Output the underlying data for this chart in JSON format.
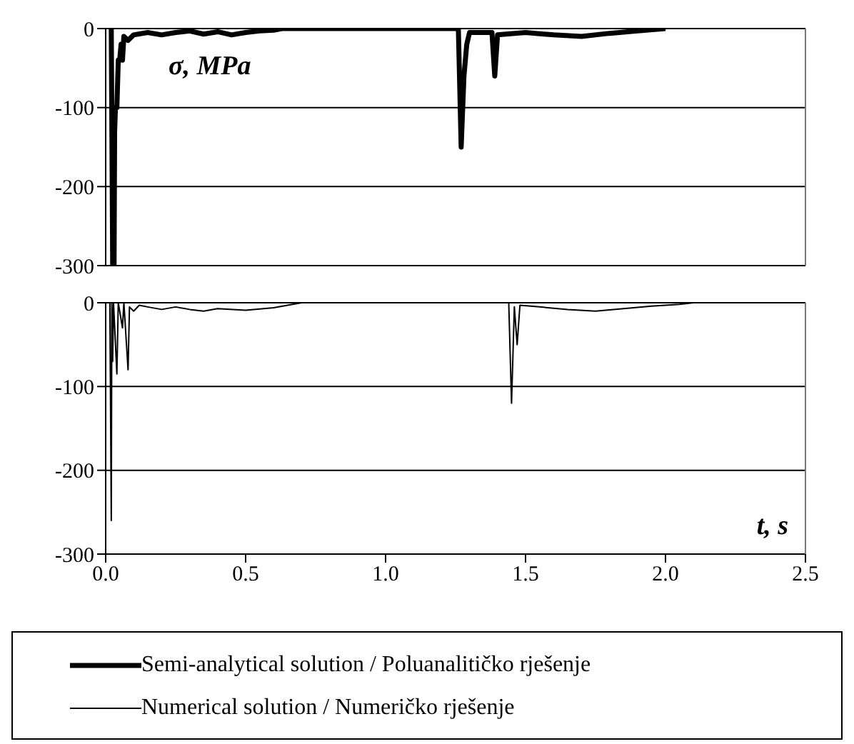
{
  "chart_data": [
    {
      "type": "line",
      "ylabel": "σ, MPa",
      "xlim": [
        0,
        2.5
      ],
      "ylim": [
        -300,
        0
      ],
      "yticks": [
        0,
        -100,
        -200,
        -300
      ],
      "tick_labels": "y",
      "grid": "y",
      "legend": "bottom",
      "marker": "none",
      "line_style": "solid",
      "series": [
        {
          "name": "Semi-analytical solution / Poluanalitičko rješenje",
          "color": "#000000",
          "x": [
            0.02,
            0.025,
            0.03,
            0.032,
            0.035,
            0.04,
            0.045,
            0.05,
            0.055,
            0.06,
            0.065,
            0.08,
            0.1,
            0.15,
            0.2,
            0.25,
            0.3,
            0.35,
            0.4,
            0.45,
            0.5,
            0.55,
            0.6,
            0.63,
            1.26,
            1.27,
            1.28,
            1.29,
            1.3,
            1.38,
            1.39,
            1.4,
            1.5,
            1.6,
            1.7,
            1.8,
            1.9,
            2.0
          ],
          "values": [
            0,
            -300,
            -300,
            -130,
            -100,
            -100,
            -40,
            -40,
            -20,
            -40,
            -10,
            -15,
            -8,
            -5,
            -8,
            -5,
            -3,
            -7,
            -4,
            -8,
            -5,
            -3,
            -2,
            0,
            0,
            -150,
            -60,
            -20,
            -5,
            -5,
            -60,
            -8,
            -5,
            -8,
            -10,
            -6,
            -3,
            0
          ]
        }
      ]
    },
    {
      "type": "line",
      "xlabel": "t, s",
      "xlim": [
        0,
        2.5
      ],
      "xticks": [
        {
          "value": 0,
          "label": "0.0"
        },
        {
          "value": 0.5,
          "label": "0.5"
        },
        {
          "value": 1,
          "label": "1.0"
        },
        {
          "value": 1.5,
          "label": "1.5"
        },
        {
          "value": 2,
          "label": "2.0"
        },
        {
          "value": 2.5,
          "label": "2.5"
        }
      ],
      "ylim": [
        -300,
        0
      ],
      "yticks": [
        0,
        -100,
        -200,
        -300
      ],
      "grid": "y",
      "legend": "bottom",
      "marker": "none",
      "line_style": "solid",
      "series": [
        {
          "name": "Numerical solution / Numeričko rješenje",
          "color": "#000000",
          "x": [
            0.015,
            0.02,
            0.022,
            0.025,
            0.028,
            0.04,
            0.045,
            0.06,
            0.065,
            0.08,
            0.085,
            0.1,
            0.12,
            0.15,
            0.2,
            0.25,
            0.3,
            0.35,
            0.4,
            0.5,
            0.6,
            0.65,
            0.7,
            0.75,
            1.44,
            1.45,
            1.46,
            1.47,
            1.48,
            1.55,
            1.65,
            1.75,
            1.85,
            1.95,
            2.05,
            2.1
          ],
          "values": [
            0,
            -260,
            0,
            -70,
            0,
            -85,
            0,
            -30,
            0,
            -80,
            -5,
            -10,
            -3,
            -5,
            -8,
            -5,
            -8,
            -10,
            -7,
            -9,
            -6,
            -3,
            0,
            0,
            0,
            -120,
            -5,
            -50,
            -3,
            -5,
            -8,
            -10,
            -7,
            -4,
            -2,
            0
          ]
        }
      ]
    }
  ]
}
